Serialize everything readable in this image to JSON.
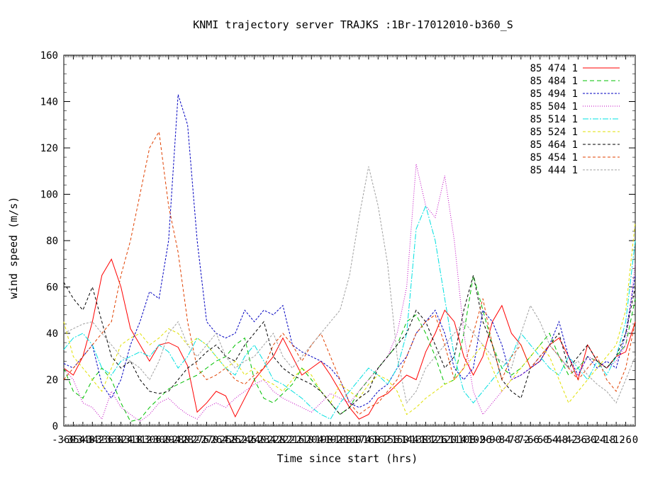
{
  "chart_data": {
    "type": "line",
    "title": "KNMI trajectory server TRAJKS :1Br-17012010-b360_S",
    "xlabel": "Time since start (hrs)",
    "ylabel": "wind speed (m/s)",
    "xlim": [
      -360,
      0
    ],
    "ylim": [
      0,
      160
    ],
    "xticks_note": "overlapping labels every 6 hrs from -360 to 0",
    "yticks": [
      0,
      20,
      40,
      60,
      80,
      100,
      120,
      140,
      160
    ],
    "grid": false,
    "legend_position": "top-right",
    "series": [
      {
        "name": "85 474 1",
        "color": "#ff0000",
        "dash": "",
        "x": [
          -360,
          -354,
          -348,
          -342,
          -336,
          -330,
          -324,
          -318,
          -312,
          -306,
          -300,
          -294,
          -288,
          -282,
          -276,
          -270,
          -264,
          -258,
          -252,
          -246,
          -240,
          -234,
          -228,
          -222,
          -216,
          -210,
          -204,
          -198,
          -192,
          -186,
          -180,
          -174,
          -168,
          -162,
          -156,
          -150,
          -144,
          -138,
          -132,
          -126,
          -120,
          -114,
          -108,
          -102,
          -96,
          -90,
          -84,
          -78,
          -72,
          -66,
          -60,
          -54,
          -48,
          -42,
          -36,
          -30,
          -24,
          -18,
          -12,
          -6,
          0
        ],
        "y": [
          25,
          22,
          30,
          45,
          65,
          72,
          60,
          42,
          35,
          28,
          35,
          36,
          34,
          26,
          6,
          10,
          15,
          13,
          4,
          12,
          20,
          25,
          30,
          38,
          30,
          22,
          25,
          28,
          22,
          15,
          8,
          3,
          5,
          12,
          14,
          18,
          22,
          20,
          32,
          40,
          50,
          45,
          30,
          22,
          30,
          45,
          52,
          40,
          35,
          25,
          28,
          35,
          38,
          30,
          20,
          35,
          28,
          25,
          30,
          32,
          45
        ]
      },
      {
        "name": "85 484 1",
        "color": "#00c000",
        "dash": "6,4",
        "x": [
          -360,
          -354,
          -348,
          -342,
          -336,
          -330,
          -324,
          -318,
          -312,
          -306,
          -300,
          -294,
          -288,
          -282,
          -276,
          -270,
          -264,
          -258,
          -252,
          -246,
          -240,
          -234,
          -228,
          -222,
          -216,
          -210,
          -204,
          -198,
          -192,
          -186,
          -180,
          -174,
          -168,
          -162,
          -156,
          -150,
          -144,
          -138,
          -132,
          -126,
          -120,
          -114,
          -108,
          -102,
          -96,
          -90,
          -84,
          -78,
          -72,
          -66,
          -60,
          -54,
          -48,
          -42,
          -36,
          -30,
          -24,
          -18,
          -12,
          -6,
          0
        ],
        "y": [
          25,
          15,
          12,
          20,
          25,
          20,
          10,
          2,
          3,
          8,
          12,
          16,
          18,
          20,
          22,
          25,
          28,
          30,
          35,
          38,
          20,
          12,
          10,
          14,
          18,
          25,
          20,
          15,
          10,
          5,
          8,
          15,
          20,
          25,
          30,
          35,
          45,
          48,
          40,
          30,
          18,
          20,
          40,
          65,
          50,
          35,
          25,
          22,
          25,
          30,
          35,
          40,
          30,
          22,
          25,
          30,
          28,
          25,
          30,
          35,
          55
        ]
      },
      {
        "name": "85 494 1",
        "color": "#0000c0",
        "dash": "3,2",
        "x": [
          -360,
          -354,
          -348,
          -342,
          -336,
          -330,
          -324,
          -318,
          -312,
          -306,
          -300,
          -294,
          -288,
          -282,
          -276,
          -270,
          -264,
          -258,
          -252,
          -246,
          -240,
          -234,
          -228,
          -222,
          -216,
          -210,
          -204,
          -198,
          -192,
          -186,
          -180,
          -174,
          -168,
          -162,
          -156,
          -150,
          -144,
          -138,
          -132,
          -126,
          -120,
          -114,
          -108,
          -102,
          -96,
          -90,
          -84,
          -78,
          -72,
          -66,
          -60,
          -54,
          -48,
          -42,
          -36,
          -30,
          -24,
          -18,
          -12,
          -6,
          0
        ],
        "y": [
          27,
          25,
          30,
          35,
          18,
          12,
          20,
          35,
          45,
          58,
          55,
          80,
          143,
          130,
          80,
          45,
          40,
          38,
          40,
          50,
          45,
          50,
          48,
          52,
          35,
          32,
          30,
          28,
          25,
          20,
          10,
          8,
          10,
          15,
          18,
          25,
          30,
          40,
          45,
          50,
          40,
          25,
          20,
          25,
          50,
          45,
          35,
          20,
          22,
          25,
          28,
          35,
          45,
          30,
          22,
          30,
          25,
          28,
          25,
          40,
          65
        ]
      },
      {
        "name": "85 504 1",
        "color": "#c000c0",
        "dash": "1,2",
        "x": [
          -360,
          -354,
          -348,
          -342,
          -336,
          -330,
          -324,
          -318,
          -312,
          -306,
          -300,
          -294,
          -288,
          -282,
          -276,
          -270,
          -264,
          -258,
          -252,
          -246,
          -240,
          -234,
          -228,
          -222,
          -216,
          -210,
          -204,
          -198,
          -192,
          -186,
          -180,
          -174,
          -168,
          -162,
          -156,
          -150,
          -144,
          -138,
          -132,
          -126,
          -120,
          -114,
          -108,
          -102,
          -96,
          -90,
          -84,
          -78,
          -72,
          -66,
          -60,
          -54,
          -48,
          -42,
          -36,
          -30,
          -24,
          -18,
          -12,
          -6,
          0
        ],
        "y": [
          25,
          20,
          10,
          8,
          3,
          15,
          8,
          5,
          2,
          5,
          10,
          12,
          8,
          5,
          3,
          8,
          10,
          8,
          12,
          15,
          18,
          20,
          15,
          12,
          10,
          8,
          6,
          10,
          14,
          12,
          10,
          15,
          20,
          25,
          30,
          40,
          60,
          113,
          95,
          90,
          108,
          80,
          40,
          15,
          5,
          10,
          15,
          20,
          22,
          25,
          30,
          35,
          30,
          25,
          22,
          30,
          28,
          25,
          28,
          35,
          70
        ]
      },
      {
        "name": "85 514 1",
        "color": "#00e0e0",
        "dash": "8,2,2,2",
        "x": [
          -360,
          -354,
          -348,
          -342,
          -336,
          -330,
          -324,
          -318,
          -312,
          -306,
          -300,
          -294,
          -288,
          -282,
          -276,
          -270,
          -264,
          -258,
          -252,
          -246,
          -240,
          -234,
          -228,
          -222,
          -216,
          -210,
          -204,
          -198,
          -192,
          -186,
          -180,
          -174,
          -168,
          -162,
          -156,
          -150,
          -144,
          -138,
          -132,
          -126,
          -120,
          -114,
          -108,
          -102,
          -96,
          -90,
          -84,
          -78,
          -72,
          -66,
          -60,
          -54,
          -48,
          -42,
          -36,
          -30,
          -24,
          -18,
          -12,
          -6,
          0
        ],
        "y": [
          33,
          38,
          40,
          35,
          25,
          22,
          28,
          30,
          32,
          30,
          35,
          32,
          25,
          30,
          38,
          35,
          30,
          25,
          22,
          30,
          35,
          28,
          20,
          18,
          15,
          12,
          8,
          5,
          3,
          10,
          15,
          20,
          25,
          22,
          18,
          25,
          40,
          85,
          95,
          80,
          55,
          30,
          15,
          10,
          15,
          20,
          25,
          30,
          40,
          35,
          30,
          25,
          22,
          30,
          25,
          20,
          28,
          22,
          30,
          45,
          80
        ]
      },
      {
        "name": "85 524 1",
        "color": "#e0e000",
        "dash": "4,3",
        "x": [
          -360,
          -354,
          -348,
          -342,
          -336,
          -330,
          -324,
          -318,
          -312,
          -306,
          -300,
          -294,
          -288,
          -282,
          -276,
          -270,
          -264,
          -258,
          -252,
          -246,
          -240,
          -234,
          -228,
          -222,
          -216,
          -210,
          -204,
          -198,
          -192,
          -186,
          -180,
          -174,
          -168,
          -162,
          -156,
          -150,
          -144,
          -138,
          -132,
          -126,
          -120,
          -114,
          -108,
          -102,
          -96,
          -90,
          -84,
          -78,
          -72,
          -66,
          -60,
          -54,
          -48,
          -42,
          -36,
          -30,
          -24,
          -18,
          -12,
          -6,
          0
        ],
        "y": [
          45,
          30,
          25,
          20,
          15,
          25,
          35,
          38,
          40,
          35,
          38,
          42,
          40,
          35,
          38,
          35,
          30,
          25,
          28,
          22,
          25,
          20,
          18,
          15,
          20,
          25,
          22,
          15,
          10,
          18,
          15,
          12,
          18,
          22,
          20,
          15,
          5,
          8,
          12,
          15,
          18,
          20,
          25,
          30,
          35,
          25,
          15,
          20,
          25,
          30,
          35,
          30,
          20,
          10,
          15,
          20,
          25,
          30,
          35,
          50,
          88
        ]
      },
      {
        "name": "85 464 1",
        "color": "#000000",
        "dash": "4,3",
        "x": [
          -360,
          -354,
          -348,
          -342,
          -336,
          -330,
          -324,
          -318,
          -312,
          -306,
          -300,
          -294,
          -288,
          -282,
          -276,
          -270,
          -264,
          -258,
          -252,
          -246,
          -240,
          -234,
          -228,
          -222,
          -216,
          -210,
          -204,
          -198,
          -192,
          -186,
          -180,
          -174,
          -168,
          -162,
          -156,
          -150,
          -144,
          -138,
          -132,
          -126,
          -120,
          -114,
          -108,
          -102,
          -96,
          -90,
          -84,
          -78,
          -72,
          -66,
          -60,
          -54,
          -48,
          -42,
          -36,
          -30,
          -24,
          -18,
          -12,
          -6,
          0
        ],
        "y": [
          62,
          55,
          50,
          60,
          45,
          30,
          25,
          28,
          20,
          15,
          14,
          15,
          20,
          25,
          28,
          32,
          35,
          30,
          28,
          35,
          40,
          45,
          30,
          25,
          22,
          20,
          18,
          15,
          10,
          5,
          8,
          12,
          15,
          25,
          30,
          35,
          40,
          50,
          45,
          35,
          25,
          30,
          50,
          65,
          45,
          35,
          20,
          15,
          12,
          25,
          30,
          35,
          40,
          25,
          30,
          35,
          28,
          25,
          30,
          40,
          60
        ]
      },
      {
        "name": "85 454 1",
        "color": "#e04000",
        "dash": "4,3",
        "x": [
          -360,
          -354,
          -348,
          -342,
          -336,
          -330,
          -324,
          -318,
          -312,
          -306,
          -300,
          -294,
          -288,
          -282,
          -276,
          -270,
          -264,
          -258,
          -252,
          -246,
          -240,
          -234,
          -228,
          -222,
          -216,
          -210,
          -204,
          -198,
          -192,
          -186,
          -180,
          -174,
          -168,
          -162,
          -156,
          -150,
          -144,
          -138,
          -132,
          -126,
          -120,
          -114,
          -108,
          -102,
          -96,
          -90,
          -84,
          -78,
          -72,
          -66,
          -60,
          -54,
          -48,
          -42,
          -36,
          -30,
          -24,
          -18,
          -12,
          -6,
          0
        ],
        "y": [
          20,
          25,
          30,
          35,
          40,
          45,
          65,
          80,
          100,
          120,
          127,
          95,
          75,
          45,
          25,
          20,
          22,
          25,
          20,
          18,
          22,
          25,
          35,
          40,
          35,
          28,
          35,
          40,
          30,
          20,
          10,
          5,
          8,
          10,
          15,
          20,
          30,
          40,
          45,
          48,
          35,
          20,
          25,
          40,
          55,
          35,
          20,
          30,
          35,
          25,
          30,
          35,
          30,
          25,
          20,
          25,
          30,
          20,
          15,
          25,
          45
        ]
      },
      {
        "name": "85 444 1",
        "color": "#a0a0a0",
        "dash": "3,2",
        "x": [
          -360,
          -354,
          -348,
          -342,
          -336,
          -330,
          -324,
          -318,
          -312,
          -306,
          -300,
          -294,
          -288,
          -282,
          -276,
          -270,
          -264,
          -258,
          -252,
          -246,
          -240,
          -234,
          -228,
          -222,
          -216,
          -210,
          -204,
          -198,
          -192,
          -186,
          -180,
          -174,
          -168,
          -162,
          -156,
          -150,
          -144,
          -138,
          -132,
          -126,
          -120,
          -114,
          -108,
          -102,
          -96,
          -90,
          -84,
          -78,
          -72,
          -66,
          -60,
          -54,
          -48,
          -42,
          -36,
          -30,
          -24,
          -18,
          -12,
          -6,
          0
        ],
        "y": [
          40,
          42,
          44,
          45,
          40,
          35,
          30,
          28,
          25,
          20,
          28,
          40,
          45,
          35,
          30,
          35,
          40,
          30,
          25,
          28,
          30,
          35,
          40,
          30,
          25,
          30,
          35,
          40,
          45,
          50,
          65,
          90,
          112,
          95,
          70,
          30,
          10,
          15,
          25,
          30,
          35,
          40,
          45,
          40,
          35,
          30,
          28,
          25,
          40,
          52,
          45,
          35,
          30,
          25,
          28,
          22,
          18,
          15,
          10,
          20,
          30
        ]
      }
    ]
  }
}
